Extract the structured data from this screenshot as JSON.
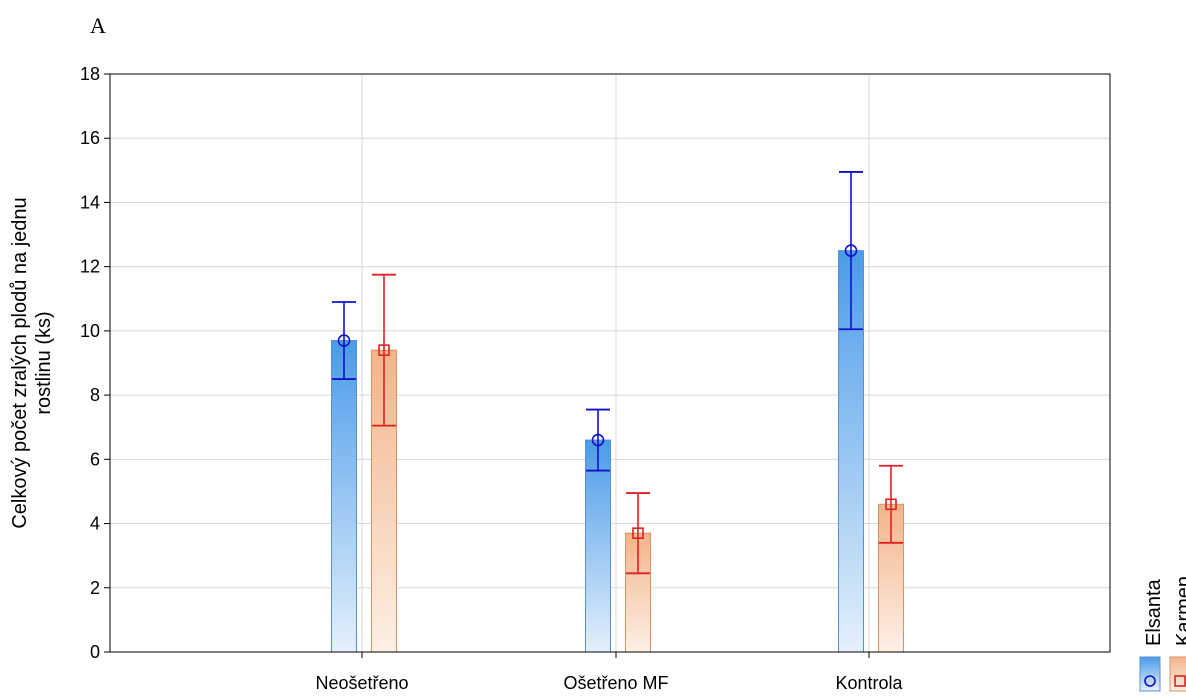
{
  "panel_label": "A",
  "chart_data": {
    "type": "bar",
    "title": "",
    "xlabel": "",
    "ylabel": "Celkový počet zralých plodů na jednu rostlinu (ks)",
    "ylabel_lines": [
      "Celkový počet zralých plodů na jednu",
      "rostlinu (ks)"
    ],
    "ylim": [
      0,
      18
    ],
    "yticks": [
      0,
      2,
      4,
      6,
      8,
      10,
      12,
      14,
      16,
      18
    ],
    "grid": true,
    "legend_placement": "bottom-right",
    "categories": [
      "Neošetřeno",
      "Ošetřeno MF",
      "Kontrola"
    ],
    "series": [
      {
        "name": "Elsanta",
        "marker": "circle",
        "color": "#1010c8",
        "fill_top": "#4a9be8",
        "fill_bottom": "#e4f0fc",
        "values": [
          9.7,
          6.6,
          12.5
        ],
        "err_low": [
          8.5,
          5.65,
          10.05
        ],
        "err_high": [
          10.9,
          7.55,
          14.95
        ]
      },
      {
        "name": "Karmen",
        "marker": "square",
        "color": "#e02020",
        "fill_top": "#f3b48a",
        "fill_bottom": "#fdf0e6",
        "values": [
          9.4,
          3.7,
          4.6
        ],
        "err_low": [
          7.05,
          2.45,
          3.4
        ],
        "err_high": [
          11.75,
          4.95,
          5.8
        ]
      }
    ]
  }
}
